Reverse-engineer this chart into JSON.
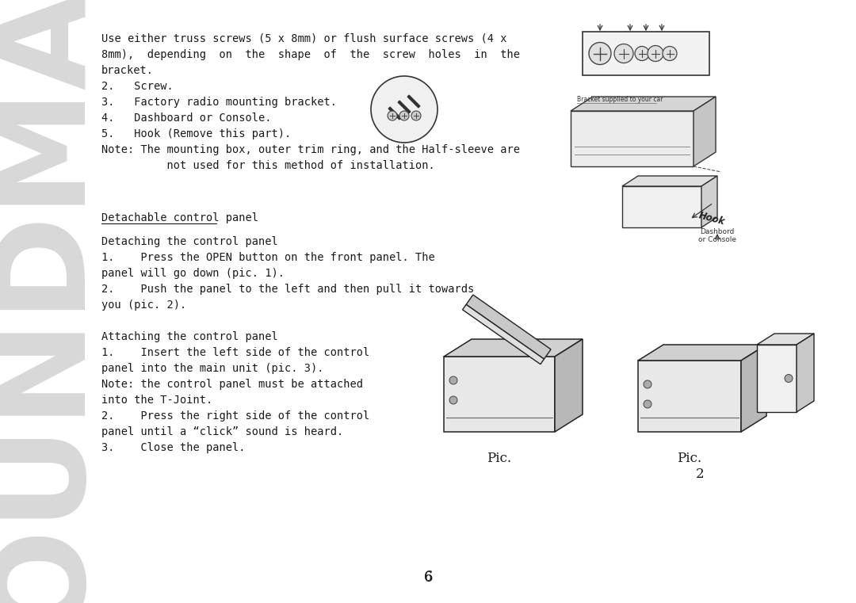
{
  "bg_color": "#ffffff",
  "text_color": "#1a1a1a",
  "soundmax_color": "#d8d8d8",
  "line1": "Use either truss screws (5 x 8mm) or flush surface screws (4 x",
  "line2": "8mm),  depending  on  the  shape  of  the  screw  holes  in  the",
  "line3": "bracket.",
  "line4": "2.   Screw.",
  "line5": "3.   Factory radio mounting bracket.",
  "line6": "4.   Dashboard or Console.",
  "line7": "5.   Hook (Remove this part).",
  "line8": "Note: The mounting box, outer trim ring, and the Half-sleeve are",
  "line9": "          not used for this method of installation.",
  "section1_title": "Detachable control panel",
  "section2_title": "Detaching the control panel",
  "s2_l1": "1.    Press the OPEN button on the front panel. The",
  "s2_l2": "panel will go down (pic. 1).",
  "s2_l3": "2.    Push the panel to the left and then pull it towards",
  "s2_l4": "you (pic. 2).",
  "section3_title": "Attaching the control panel",
  "s3_l1": "1.    Insert the left side of the control",
  "s3_l2": "panel into the main unit (pic. 3).",
  "s3_l3": "Note: the control panel must be attached",
  "s3_l4": "into the T-Joint.",
  "s3_l5": "2.    Press the right side of the control",
  "s3_l6": "panel until a “click” sound is heard.",
  "s3_l7": "3.    Close the panel.",
  "pic1_label": "Pic.",
  "pic2_label": "Pic.",
  "pic2_num": "2",
  "page_num": "6",
  "bracket_label": "Bracket supplied to your car",
  "hook_label": "Hook",
  "console_label": "Dashbord\nor Console"
}
